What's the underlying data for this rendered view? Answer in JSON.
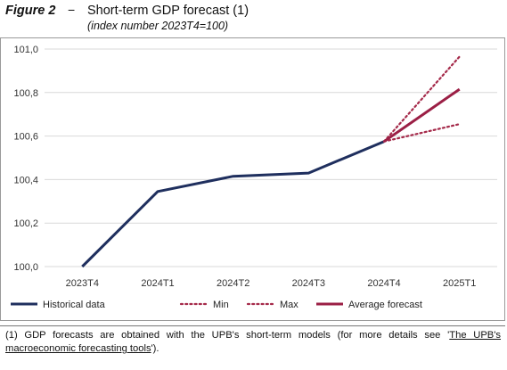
{
  "header": {
    "figure_label": "Figure 2",
    "dash": "−",
    "title": "Short-term GDP forecast (1)",
    "subtitle": "(index number 2023T4=100)"
  },
  "footnote": {
    "text_before": "(1) GDP forecasts are obtained with the UPB's short-term models (for more details see '",
    "link_text": "The UPB's macroeconomic forecasting tools",
    "text_after": "')."
  },
  "colors": {
    "historical": "#1f2f5e",
    "forecast_range": "#a52a4a",
    "average_forecast": "#9b1f45",
    "grid": "#d9d9d9"
  },
  "chart_data": {
    "type": "line",
    "title": "Short-term GDP forecast (1)",
    "subtitle": "(index number 2023T4=100)",
    "xlabel": "",
    "ylabel": "",
    "categories": [
      "2023T4",
      "2024T1",
      "2024T2",
      "2024T3",
      "2024T4",
      "2025T1"
    ],
    "ylim": [
      100.0,
      101.0
    ],
    "y_ticks": [
      "100,0",
      "100,2",
      "100,4",
      "100,6",
      "100,8",
      "101,0"
    ],
    "y_tick_values": [
      100.0,
      100.2,
      100.4,
      100.6,
      100.8,
      101.0
    ],
    "grid": "horizontal",
    "legend_position": "bottom",
    "series": [
      {
        "name": "Historical data",
        "style": "solid",
        "values": [
          100.0,
          100.345,
          100.415,
          100.43,
          100.575,
          null
        ]
      },
      {
        "name": "Min",
        "style": "dotted",
        "values": [
          null,
          null,
          null,
          null,
          100.575,
          100.655
        ]
      },
      {
        "name": "Max",
        "style": "dotted",
        "values": [
          null,
          null,
          null,
          null,
          100.575,
          100.965
        ]
      },
      {
        "name": "Average forecast",
        "style": "solid",
        "values": [
          null,
          null,
          null,
          null,
          100.575,
          100.815
        ]
      }
    ]
  }
}
